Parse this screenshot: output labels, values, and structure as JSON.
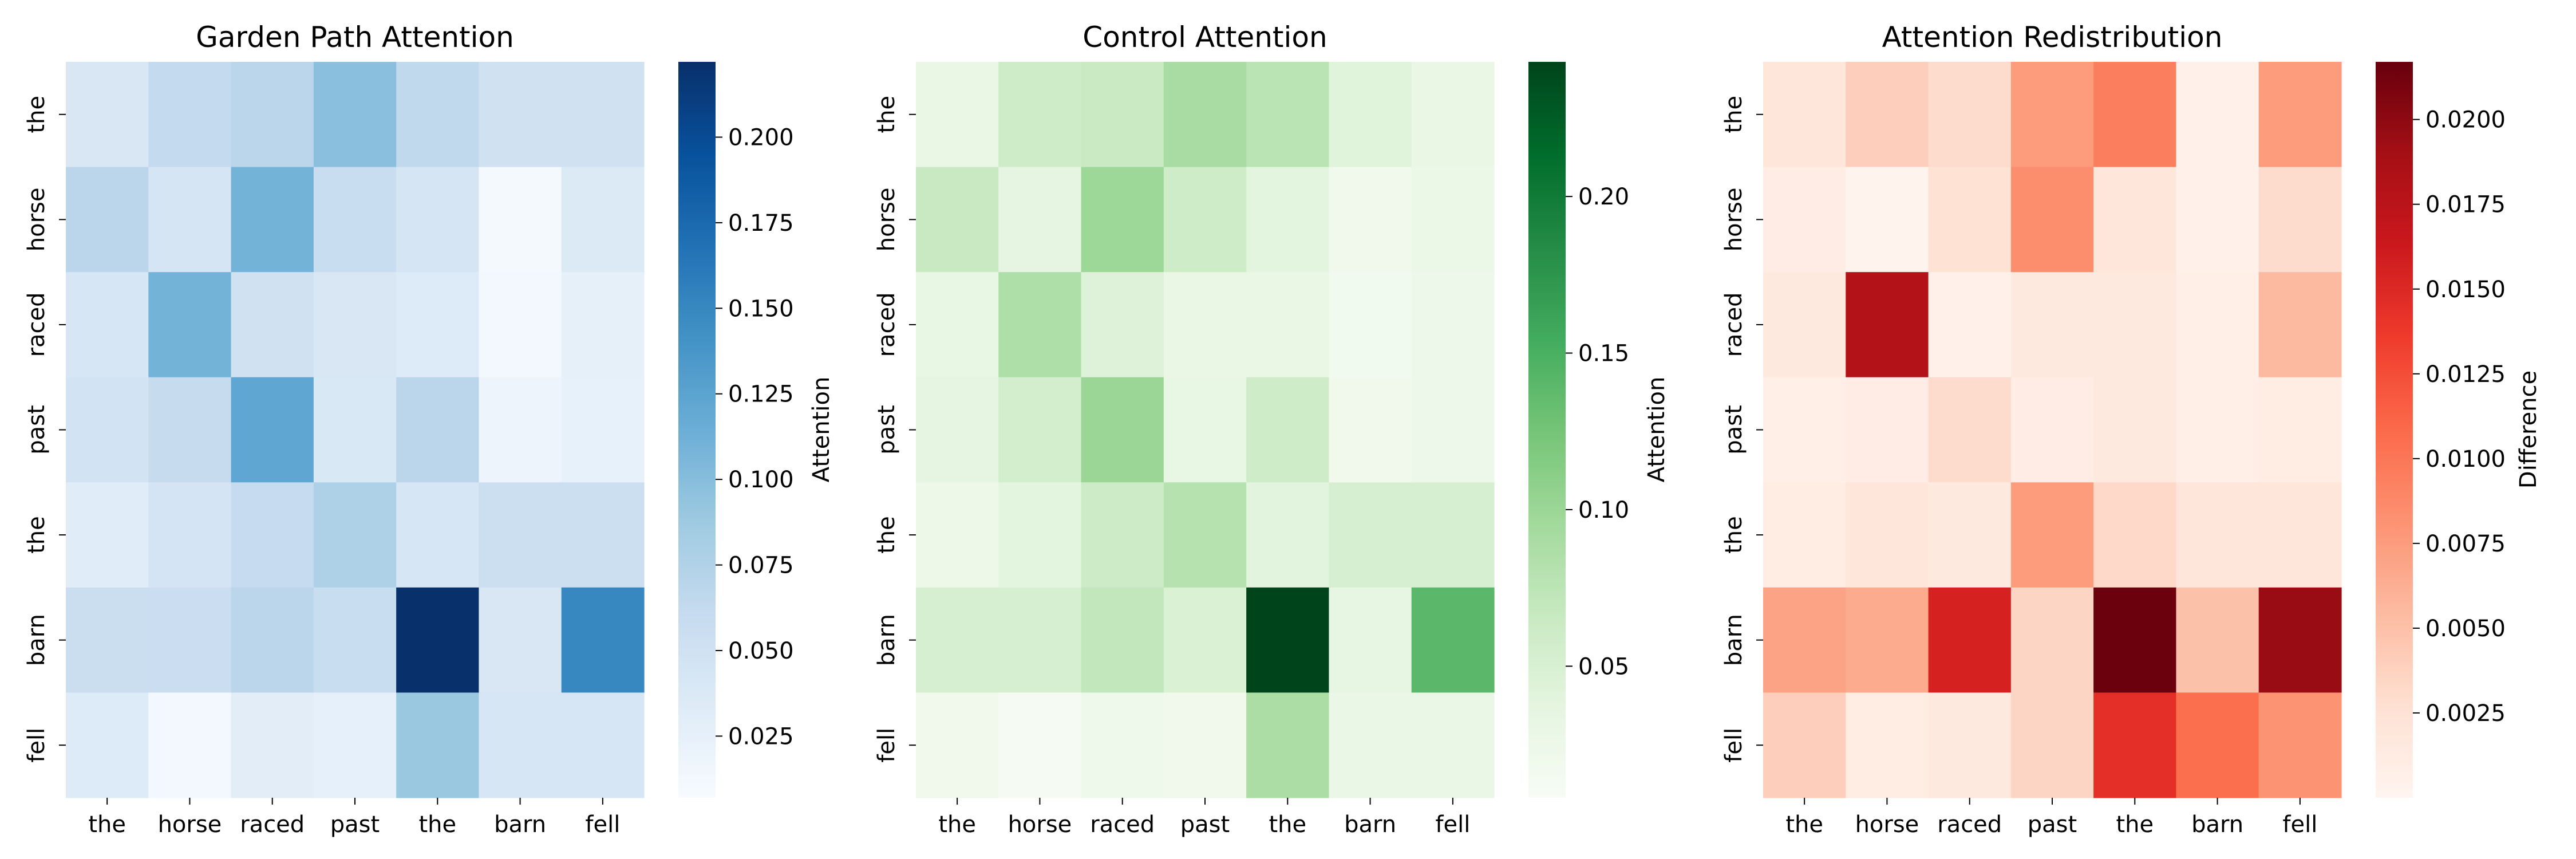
{
  "chart_data": [
    {
      "type": "heatmap",
      "title": "Garden Path Attention",
      "x_categories": [
        "the",
        "horse",
        "raced",
        "past",
        "the",
        "barn",
        "fell"
      ],
      "y_categories": [
        "the",
        "horse",
        "raced",
        "past",
        "the",
        "barn",
        "fell"
      ],
      "values": [
        [
          0.04,
          0.062,
          0.068,
          0.098,
          0.064,
          0.05,
          0.05
        ],
        [
          0.068,
          0.044,
          0.11,
          0.058,
          0.044,
          0.01,
          0.036
        ],
        [
          0.043,
          0.11,
          0.049,
          0.04,
          0.035,
          0.012,
          0.026
        ],
        [
          0.047,
          0.06,
          0.122,
          0.039,
          0.068,
          0.018,
          0.024
        ],
        [
          0.032,
          0.045,
          0.061,
          0.077,
          0.042,
          0.054,
          0.054
        ],
        [
          0.056,
          0.055,
          0.068,
          0.058,
          0.222,
          0.04,
          0.15
        ],
        [
          0.035,
          0.012,
          0.03,
          0.025,
          0.09,
          0.043,
          0.043
        ]
      ],
      "colorbar": {
        "label": "Attention",
        "vmin": 0.007,
        "vmax": 0.222,
        "ticks": [
          0.025,
          0.05,
          0.075,
          0.1,
          0.125,
          0.15,
          0.175,
          0.2
        ],
        "tick_labels": [
          "0.025",
          "0.050",
          "0.075",
          "0.100",
          "0.125",
          "0.150",
          "0.175",
          "0.200"
        ]
      },
      "colormap": "Blues",
      "xlabel": "",
      "ylabel": ""
    },
    {
      "type": "heatmap",
      "title": "Control Attention",
      "x_categories": [
        "the",
        "horse",
        "raced",
        "past",
        "the",
        "barn",
        "fell"
      ],
      "y_categories": [
        "the",
        "horse",
        "raced",
        "past",
        "the",
        "barn",
        "fell"
      ],
      "values": [
        [
          0.03,
          0.06,
          0.064,
          0.09,
          0.076,
          0.042,
          0.03
        ],
        [
          0.066,
          0.036,
          0.098,
          0.06,
          0.038,
          0.02,
          0.028
        ],
        [
          0.032,
          0.085,
          0.045,
          0.03,
          0.03,
          0.018,
          0.024
        ],
        [
          0.036,
          0.055,
          0.1,
          0.032,
          0.06,
          0.02,
          0.024
        ],
        [
          0.025,
          0.038,
          0.061,
          0.08,
          0.04,
          0.052,
          0.052
        ],
        [
          0.052,
          0.052,
          0.07,
          0.048,
          0.243,
          0.035,
          0.14
        ],
        [
          0.02,
          0.012,
          0.022,
          0.02,
          0.088,
          0.029,
          0.029
        ]
      ],
      "colorbar": {
        "label": "Attention",
        "vmin": 0.008,
        "vmax": 0.243,
        "ticks": [
          0.05,
          0.1,
          0.15,
          0.2
        ],
        "tick_labels": [
          "0.05",
          "0.10",
          "0.15",
          "0.20"
        ]
      },
      "colormap": "Greens",
      "xlabel": "",
      "ylabel": ""
    },
    {
      "type": "heatmap",
      "title": "Attention Redistribution",
      "x_categories": [
        "the",
        "horse",
        "raced",
        "past",
        "the",
        "barn",
        "fell"
      ],
      "y_categories": [
        "the",
        "horse",
        "raced",
        "past",
        "the",
        "barn",
        "fell"
      ],
      "values": [
        [
          0.002,
          0.004,
          0.003,
          0.0075,
          0.0095,
          0.0005,
          0.0075
        ],
        [
          0.001,
          0.0002,
          0.0025,
          0.0085,
          0.002,
          0.0005,
          0.003
        ],
        [
          0.0015,
          0.018,
          0.0005,
          0.0015,
          0.0015,
          0.0008,
          0.0055
        ],
        [
          0.0008,
          0.001,
          0.003,
          0.001,
          0.0015,
          0.0008,
          0.0012
        ],
        [
          0.0012,
          0.002,
          0.0015,
          0.0075,
          0.0032,
          0.002,
          0.002
        ],
        [
          0.007,
          0.0065,
          0.0155,
          0.0035,
          0.0215,
          0.005,
          0.0195
        ],
        [
          0.004,
          0.0012,
          0.0015,
          0.0035,
          0.0145,
          0.0105,
          0.008
        ]
      ],
      "colorbar": {
        "label": "Difference",
        "vmin": 0.0,
        "vmax": 0.0217,
        "ticks": [
          0.0025,
          0.005,
          0.0075,
          0.01,
          0.0125,
          0.015,
          0.0175,
          0.02
        ],
        "tick_labels": [
          "0.0025",
          "0.0050",
          "0.0075",
          "0.0100",
          "0.0125",
          "0.0150",
          "0.0175",
          "0.0200"
        ]
      },
      "colormap": "Reds",
      "xlabel": "",
      "ylabel": ""
    }
  ],
  "colors": {
    "Blues": [
      "#f7fbff",
      "#deebf7",
      "#c6dbef",
      "#9ecae1",
      "#6baed6",
      "#4292c6",
      "#2171b5",
      "#08519c",
      "#08306b"
    ],
    "Greens": [
      "#f7fcf5",
      "#e5f5e0",
      "#c7e9c0",
      "#a1d99b",
      "#74c476",
      "#41ab5d",
      "#238b45",
      "#006d2c",
      "#00441b"
    ],
    "Reds": [
      "#fff5f0",
      "#fee0d2",
      "#fcbba1",
      "#fc9272",
      "#fb6a4a",
      "#ef3b2c",
      "#cb181d",
      "#a50f15",
      "#67000d"
    ]
  }
}
